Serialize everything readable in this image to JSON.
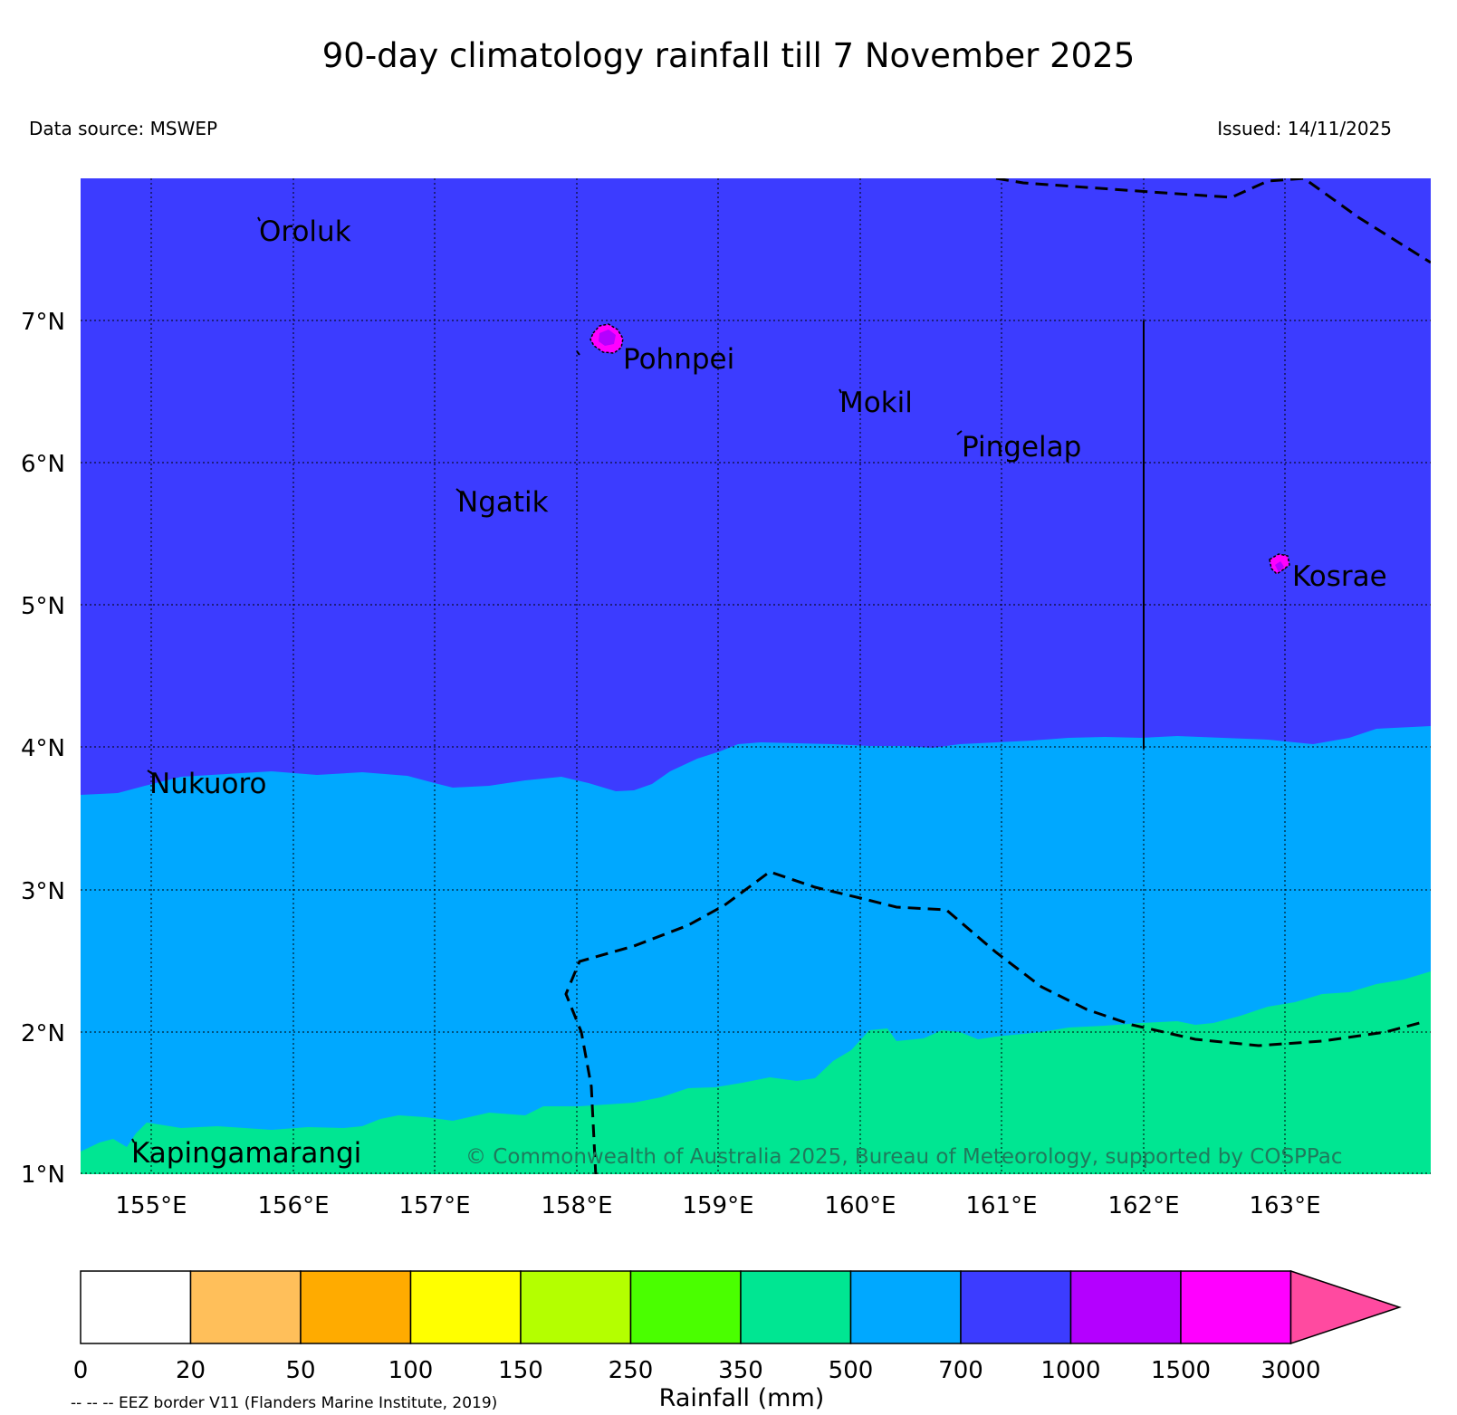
{
  "title": "90-day climatology rainfall till 7 November 2025",
  "data_source": "Data source: MSWEP",
  "issued": "Issued: 14/11/2025",
  "copyright": "© Commonwealth of Australia 2025, Bureau of Meteorology, supported by COSPPac",
  "eez_note": "-- -- -- EEZ border V11 (Flanders Marine Institute, 2019)",
  "map": {
    "lon_range": [
      154.5,
      164.0
    ],
    "lat_range": [
      1.0,
      8.0
    ],
    "lon_ticks": [
      "155°E",
      "156°E",
      "157°E",
      "158°E",
      "159°E",
      "160°E",
      "161°E",
      "162°E",
      "163°E"
    ],
    "lat_ticks": [
      "1°N",
      "2°N",
      "3°N",
      "4°N",
      "5°N",
      "6°N",
      "7°N"
    ],
    "gridlines": true,
    "places": [
      {
        "name": "Oroluk"
      },
      {
        "name": "Pohnpei"
      },
      {
        "name": "Mokil"
      },
      {
        "name": "Pingelap"
      },
      {
        "name": "Ngatik"
      },
      {
        "name": "Kosrae"
      },
      {
        "name": "Nukuoro"
      },
      {
        "name": "Kapingamarangi"
      }
    ]
  },
  "colorbar": {
    "label": "Rainfall (mm)",
    "ticks": [
      "0",
      "20",
      "50",
      "100",
      "150",
      "250",
      "350",
      "500",
      "700",
      "1000",
      "1500",
      "3000"
    ],
    "colors": [
      "#ffffff",
      "#ffbf5a",
      "#ffab00",
      "#ffff00",
      "#b4ff00",
      "#4aff00",
      "#00e692",
      "#00a8ff",
      "#3c3cff",
      "#b400ff",
      "#ff00ff"
    ],
    "extend_color": "#ff4aa0"
  }
}
